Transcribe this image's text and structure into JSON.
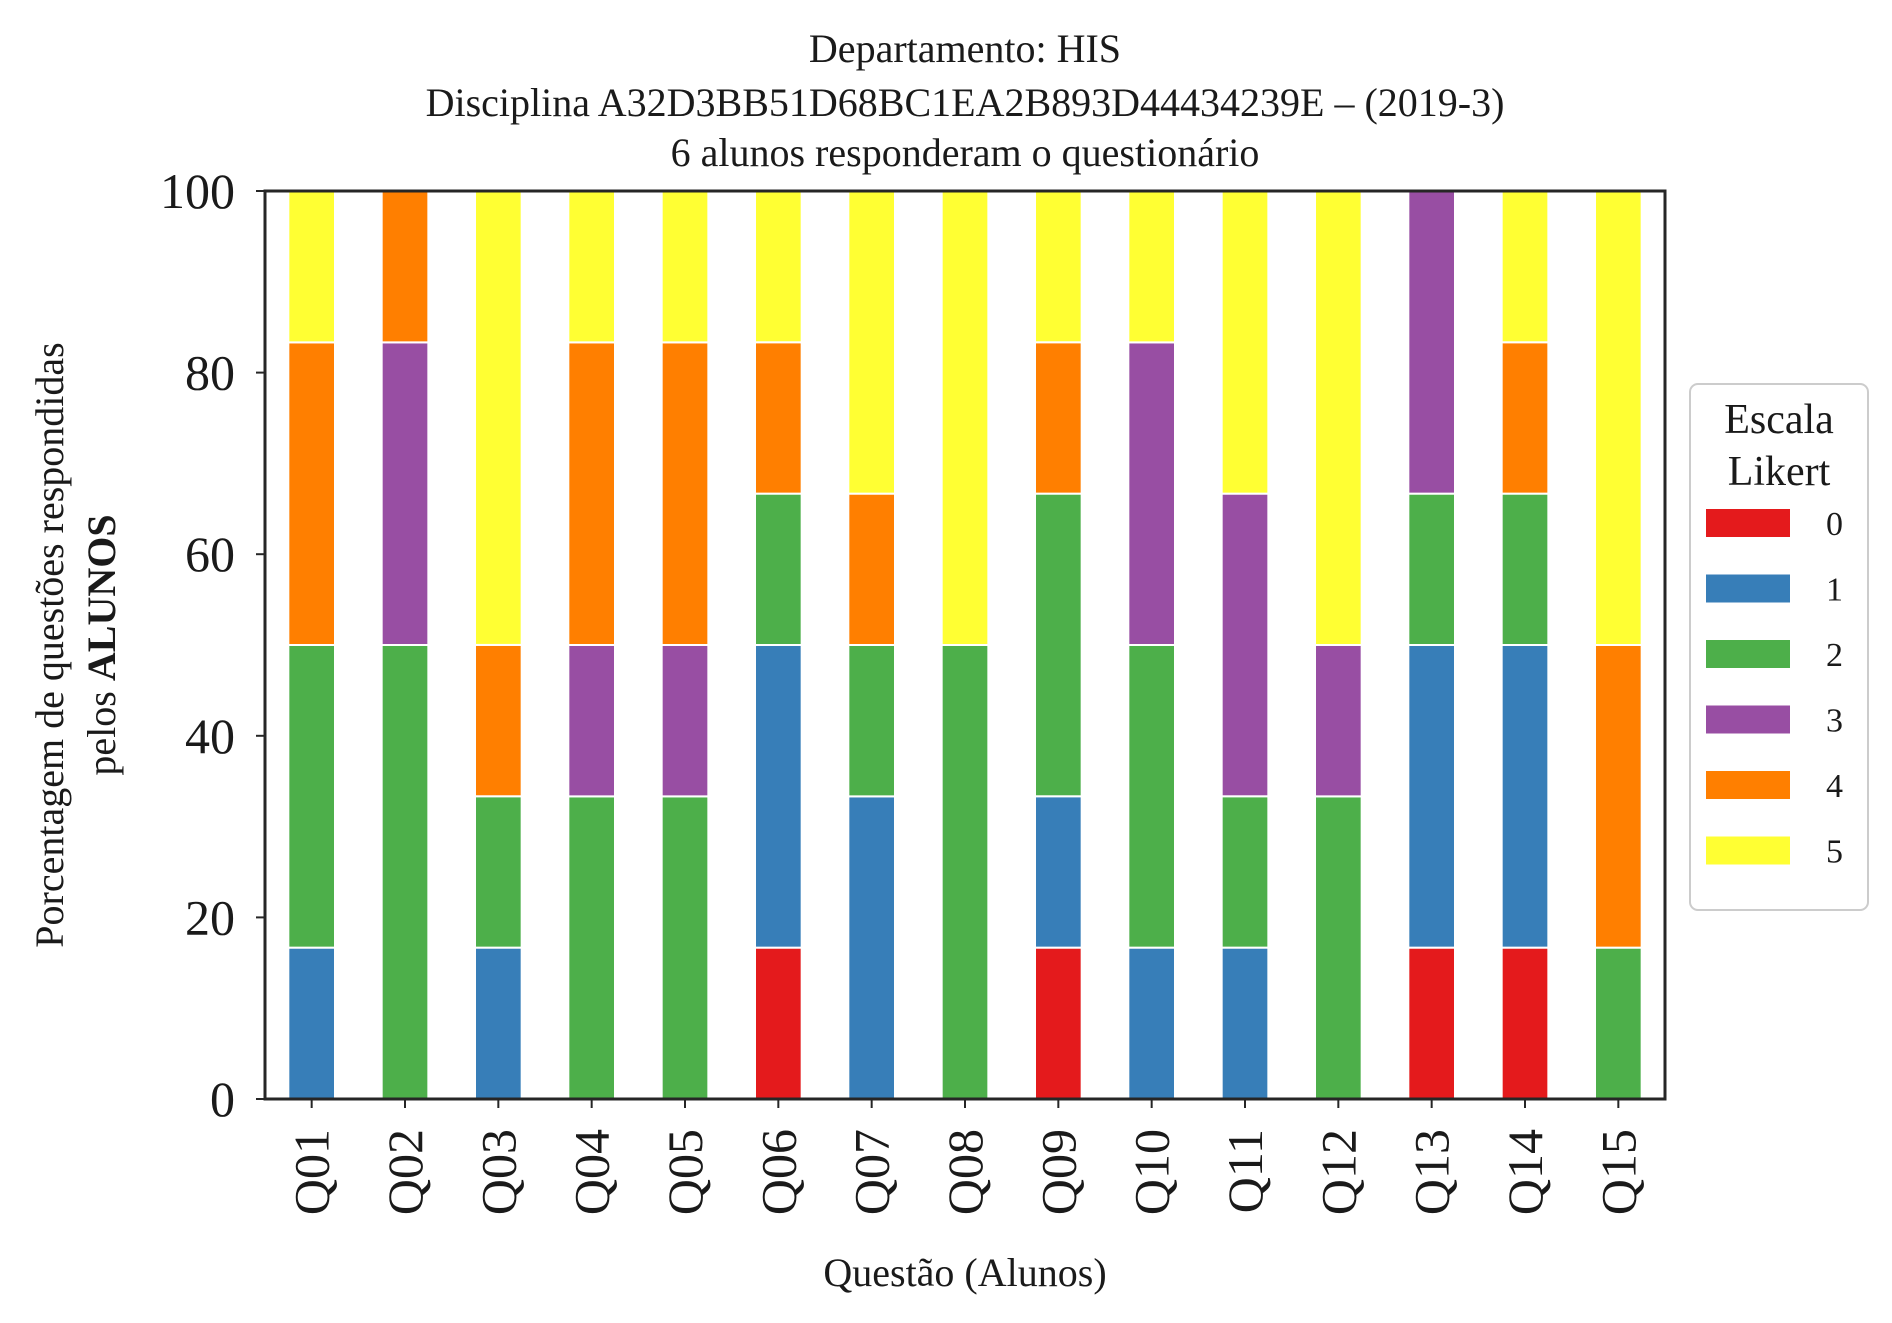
{
  "chart_data": {
    "type": "bar",
    "stacked": true,
    "title_lines": [
      "Departamento: HIS",
      "Disciplina A32D3BB51D68BC1EA2B893D44434239E – (2019-3)",
      "6 alunos responderam o questionário"
    ],
    "xlabel": "Questão (Alunos)",
    "ylabel_line1": "Porcentagem de questões respondidas",
    "ylabel_line2_prefix": "pelos",
    "ylabel_line2_bold": "ALUNOS",
    "ylim": [
      0,
      100
    ],
    "yticks": [
      "0",
      "20",
      "40",
      "60",
      "80",
      "100"
    ],
    "categories": [
      "Q01",
      "Q02",
      "Q03",
      "Q04",
      "Q05",
      "Q06",
      "Q07",
      "Q08",
      "Q09",
      "Q10",
      "Q11",
      "Q12",
      "Q13",
      "Q14",
      "Q15"
    ],
    "legend": {
      "title_line1": "Escala",
      "title_line2": "Likert",
      "placement": "center-right"
    },
    "grid": false,
    "series": [
      {
        "name": "0",
        "color": "#e41a1c",
        "values": [
          0,
          0,
          0,
          0,
          0,
          16.67,
          0,
          0,
          16.67,
          0,
          0,
          0,
          16.67,
          16.67,
          0
        ]
      },
      {
        "name": "1",
        "color": "#377eb8",
        "values": [
          16.67,
          0,
          16.67,
          0,
          0,
          33.33,
          33.33,
          0,
          16.67,
          16.67,
          16.67,
          0,
          33.33,
          33.33,
          0
        ]
      },
      {
        "name": "2",
        "color": "#4daf4a",
        "values": [
          33.33,
          50,
          16.67,
          33.33,
          33.33,
          16.67,
          16.67,
          50,
          33.33,
          33.33,
          16.67,
          33.33,
          16.67,
          16.67,
          16.67
        ]
      },
      {
        "name": "3",
        "color": "#984ea3",
        "values": [
          0,
          33.33,
          0,
          16.67,
          16.67,
          0,
          0,
          0,
          0,
          33.33,
          33.33,
          16.67,
          33.33,
          0,
          0
        ]
      },
      {
        "name": "4",
        "color": "#ff7f00",
        "values": [
          33.33,
          16.67,
          16.67,
          33.33,
          33.33,
          16.67,
          16.67,
          0,
          16.67,
          0,
          0,
          0,
          0,
          16.67,
          33.33
        ]
      },
      {
        "name": "5",
        "color": "#ffff33",
        "values": [
          16.67,
          0,
          50,
          16.67,
          16.67,
          16.67,
          33.33,
          50,
          16.67,
          16.67,
          33.33,
          50,
          0,
          16.67,
          50
        ]
      }
    ]
  }
}
